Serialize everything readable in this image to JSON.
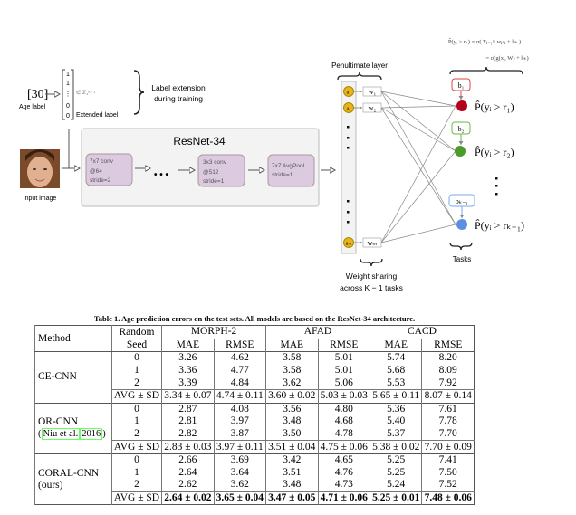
{
  "figure": {
    "age_label_value": "[30]",
    "age_label": "Age label",
    "extended_vector": [
      "1",
      "1",
      "⋮",
      "0",
      "0"
    ],
    "extended_set": "∈ ℤ₂ᴷ⁻¹",
    "extended_label": "Extended label",
    "label_extension": [
      "Label extension",
      "during training"
    ],
    "input_image": "Input image",
    "resnet_title": "ResNet-34",
    "blocks": [
      {
        "lines": [
          "7x7 conv",
          "@64",
          "stride=2"
        ]
      },
      {
        "lines": [
          "3x3 conv",
          "@512",
          "stride=1"
        ]
      },
      {
        "lines": [
          "7x7 AvgPool",
          "stride=1"
        ]
      }
    ],
    "ellipsis": "• • •",
    "penultimate_layer": "Penultimate layer",
    "activations": [
      "a₁",
      "a₂",
      "aₘ"
    ],
    "weights": [
      "w₁",
      "w₂",
      "wₘ"
    ],
    "biases": [
      "b₁",
      "b₂",
      "bₖ₋₁"
    ],
    "outputs": [
      "P̂(yᵢ > r₁)",
      "P̂(yᵢ > r₂)",
      "P̂(yᵢ > rₖ₋₁)"
    ],
    "formula": [
      "P̂(yᵢ > rₖ) = σ( Σⱼ₌₁ᵐ wⱼaⱼ + bₖ )",
      "= σ(g(xᵢ, W) + bₖ)"
    ],
    "tasks": "Tasks",
    "weight_sharing": [
      "Weight sharing",
      "across K − 1 tasks"
    ],
    "colors": {
      "task1": "#b3001b",
      "task2": "#4c9a2a",
      "task3": "#5b8fe0",
      "activation": "#e8b31c",
      "block": "#dccbe0"
    }
  },
  "table": {
    "caption": "Table 1. Age prediction errors on the test sets. All models are based on the ResNet-34 architecture.",
    "headers": {
      "method": "Method",
      "seed": [
        "Random",
        "Seed"
      ],
      "datasets": [
        "MORPH-2",
        "AFAD",
        "CACD"
      ],
      "metrics": [
        "MAE",
        "RMSE"
      ]
    },
    "groups": [
      {
        "method": [
          "CE-CNN"
        ],
        "rows": [
          [
            "0",
            "3.26",
            "4.62",
            "3.58",
            "5.01",
            "5.74",
            "8.20"
          ],
          [
            "1",
            "3.36",
            "4.77",
            "3.58",
            "5.01",
            "5.68",
            "8.09"
          ],
          [
            "2",
            "3.39",
            "4.84",
            "3.62",
            "5.06",
            "5.53",
            "7.92"
          ]
        ],
        "avg": [
          "AVG ± SD",
          "3.34 ± 0.07",
          "4.74 ± 0.11",
          "3.60 ± 0.02",
          "5.03 ± 0.03",
          "5.65 ± 0.11",
          "8.07 ± 0.14"
        ],
        "bold": false
      },
      {
        "method": [
          "OR-CNN"
        ],
        "cite": [
          "(",
          "Niu et al.",
          "2016",
          ")"
        ],
        "rows": [
          [
            "0",
            "2.87",
            "4.08",
            "3.56",
            "4.80",
            "5.36",
            "7.61"
          ],
          [
            "1",
            "2.81",
            "3.97",
            "3.48",
            "4.68",
            "5.40",
            "7.78"
          ],
          [
            "2",
            "2.82",
            "3.87",
            "3.50",
            "4.78",
            "5.37",
            "7.70"
          ]
        ],
        "avg": [
          "AVG ± SD",
          "2.83 ± 0.03",
          "3.97 ± 0.11",
          "3.51 ± 0.04",
          "4.75 ± 0.06",
          "5.38 ± 0.02",
          "7.70 ± 0.09"
        ],
        "bold": false
      },
      {
        "method": [
          "CORAL-CNN",
          "(ours)"
        ],
        "rows": [
          [
            "0",
            "2.66",
            "3.69",
            "3.42",
            "4.65",
            "5.25",
            "7.41"
          ],
          [
            "1",
            "2.64",
            "3.64",
            "3.51",
            "4.76",
            "5.25",
            "7.50"
          ],
          [
            "2",
            "2.62",
            "3.62",
            "3.48",
            "4.73",
            "5.24",
            "7.52"
          ]
        ],
        "avg": [
          "AVG ± SD",
          "2.64 ± 0.02",
          "3.65 ± 0.04",
          "3.47 ± 0.05",
          "4.71 ± 0.06",
          "5.25 ± 0.01",
          "7.48 ± 0.06"
        ],
        "bold": true
      }
    ]
  }
}
